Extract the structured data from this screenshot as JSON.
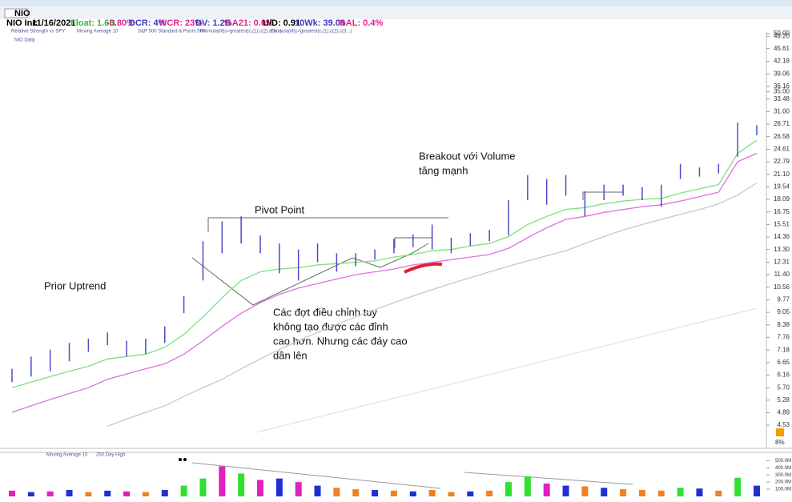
{
  "header": {
    "symbol": "NIO",
    "company": "NIO Inc",
    "date": "11/16/2021",
    "float": "Float: 1.6B",
    "change": "-0.80%",
    "dcr": "DCR: 4%",
    "wcr": "WCR: 23%",
    "dv": "DV: 1.2B",
    "a21": "%A21: 0.0%",
    "ud": "U/D: 0.91",
    "wk10": "10Wk: 39.08",
    "al": "%AL: 0.4%"
  },
  "toolbar": [
    "Relative Strength vs SPY",
    "Moving Average 10",
    "S&P 500 Standard & Poors 500",
    "Formula(iif(c>greatest(c,(1),c(2),c(3...)",
    "Formula(iif(c>greatest(c,(1),c(2),c(3...)",
    "NIO Daily"
  ],
  "volume_legend": [
    "Moving Average 10",
    "250 Day High"
  ],
  "right_label": "8%",
  "annotations": {
    "prior_uptrend": "Prior Uptrend",
    "pivot_point": "Pivot Point",
    "breakout": [
      "Breakout với Volume",
      "tăng mạnh"
    ],
    "correction": [
      "Các đợt điều chỉnh tuy",
      "không tạo được các đỉnh",
      "cao hơn. Nhưng các đáy cao",
      "dần lên"
    ]
  },
  "chart_data": {
    "type": "range-bar",
    "log_scale": true,
    "bar_color": "#4b4bc8",
    "high": [
      6.4,
      6.9,
      7.2,
      7.5,
      7.7,
      8.0,
      7.6,
      7.7,
      8.3,
      10.0,
      14.0,
      15.8,
      16.3,
      14.5,
      13.8,
      13.3,
      13.8,
      13.0,
      13.0,
      13.3,
      14.2,
      14.6,
      15.5,
      14.3,
      14.7,
      15.0,
      18.0,
      21.0,
      20.5,
      21.0,
      19.0,
      19.8,
      19.8,
      19.5,
      19.8,
      22.5,
      22.0,
      22.5,
      29.0,
      28.5
    ],
    "low": [
      5.9,
      6.1,
      6.3,
      6.7,
      7.1,
      7.4,
      6.9,
      7.0,
      7.5,
      9.0,
      11.0,
      13.0,
      13.8,
      13.0,
      11.5,
      11.0,
      12.3,
      11.6,
      12.0,
      12.5,
      13.0,
      13.5,
      13.3,
      13.0,
      13.6,
      14.0,
      14.5,
      18.0,
      17.5,
      18.5,
      16.3,
      18.0,
      18.5,
      18.0,
      17.3,
      20.5,
      20.8,
      21.2,
      23.5,
      26.8
    ],
    "series": [
      {
        "name": "21ema",
        "color": "#7ee07e",
        "values": [
          5.7,
          5.9,
          6.1,
          6.3,
          6.5,
          6.8,
          6.9,
          7.0,
          7.3,
          7.9,
          8.8,
          9.9,
          11.0,
          11.6,
          11.8,
          11.9,
          12.1,
          12.2,
          12.3,
          12.4,
          12.7,
          12.9,
          13.2,
          13.3,
          13.6,
          13.8,
          14.4,
          15.5,
          16.3,
          17.0,
          17.2,
          17.6,
          17.9,
          18.1,
          18.2,
          18.8,
          19.3,
          19.8,
          24.0,
          26.0
        ]
      },
      {
        "name": "50sma",
        "color": "#e070e0",
        "values": [
          4.9,
          5.1,
          5.3,
          5.5,
          5.7,
          6.0,
          6.2,
          6.4,
          6.6,
          7.0,
          7.6,
          8.3,
          9.0,
          9.6,
          10.1,
          10.5,
          10.8,
          11.1,
          11.4,
          11.6,
          11.8,
          12.1,
          12.3,
          12.5,
          12.7,
          12.9,
          13.4,
          14.3,
          15.2,
          16.0,
          16.3,
          16.7,
          17.0,
          17.3,
          17.5,
          17.9,
          18.4,
          18.9,
          22.8,
          24.0
        ]
      },
      {
        "name": "200sma",
        "color": "#c8c8c8",
        "values": [
          null,
          null,
          null,
          null,
          null,
          4.5,
          4.7,
          4.9,
          5.1,
          5.4,
          5.7,
          6.0,
          6.4,
          6.8,
          7.2,
          7.6,
          8.0,
          8.4,
          8.8,
          9.2,
          9.6,
          10.0,
          10.4,
          10.8,
          11.2,
          11.6,
          12.0,
          12.4,
          12.8,
          13.2,
          13.8,
          14.4,
          15.0,
          15.5,
          16.0,
          16.5,
          17.0,
          17.6,
          18.6,
          20.0
        ]
      }
    ],
    "ylim": [
      4.53,
      50
    ],
    "yticks": [
      {
        "value": 50,
        "label": "50.00"
      },
      {
        "value": 49.2,
        "label": "49.20"
      },
      45.61,
      42.18,
      39.06,
      36.16,
      {
        "value": 35,
        "label": "35.00"
      },
      33.48,
      {
        "value": 31,
        "label": "31.00"
      },
      28.71,
      26.58,
      24.61,
      22.79,
      {
        "value": 21.1,
        "label": "21.10"
      },
      19.54,
      18.09,
      16.75,
      15.51,
      14.36,
      {
        "value": 13.3,
        "label": "13.30"
      },
      12.31,
      {
        "value": 11.4,
        "label": "11.40"
      },
      10.56,
      9.77,
      9.05,
      8.38,
      7.76,
      7.18,
      6.65,
      6.16,
      {
        "value": 5.7,
        "label": "5.70"
      },
      5.28,
      4.89,
      4.53
    ],
    "volume": [
      80000000,
      60000000,
      70000000,
      90000000,
      60000000,
      80000000,
      70000000,
      60000000,
      90000000,
      150000000,
      250000000,
      420000000,
      320000000,
      230000000,
      250000000,
      200000000,
      150000000,
      120000000,
      100000000,
      90000000,
      80000000,
      70000000,
      90000000,
      60000000,
      70000000,
      80000000,
      200000000,
      280000000,
      180000000,
      150000000,
      140000000,
      120000000,
      100000000,
      90000000,
      80000000,
      120000000,
      110000000,
      80000000,
      260000000,
      150000000
    ],
    "volume_colors": [
      "#e020c0",
      "#2030d0",
      "#e020c0",
      "#2030d0",
      "#f08020",
      "#2030d0",
      "#e020c0",
      "#f08020",
      "#2030d0",
      "#30e030",
      "#30e030",
      "#e020c0",
      "#30e030",
      "#e020c0",
      "#2030d0",
      "#e020c0",
      "#2030d0",
      "#f08020",
      "#f08020",
      "#2030d0",
      "#f08020",
      "#2030d0",
      "#f08020",
      "#f08020",
      "#2030d0",
      "#f08020",
      "#30e030",
      "#30e030",
      "#e020c0",
      "#2030d0",
      "#f08020",
      "#2030d0",
      "#f08020",
      "#f08020",
      "#f08020",
      "#30e030",
      "#2030d0",
      "#f08020",
      "#30e030",
      "#2030d0"
    ],
    "volume_ylim": [
      0,
      560000000
    ],
    "volume_ticks": [
      {
        "value": 100000000,
        "label": "100.0M"
      },
      {
        "value": 200000000,
        "label": "200.0M"
      },
      {
        "value": 300000000,
        "label": "300.0M"
      },
      {
        "value": 400000000,
        "label": "400.0M"
      },
      {
        "value": 500000000,
        "label": "500.0M"
      }
    ]
  }
}
